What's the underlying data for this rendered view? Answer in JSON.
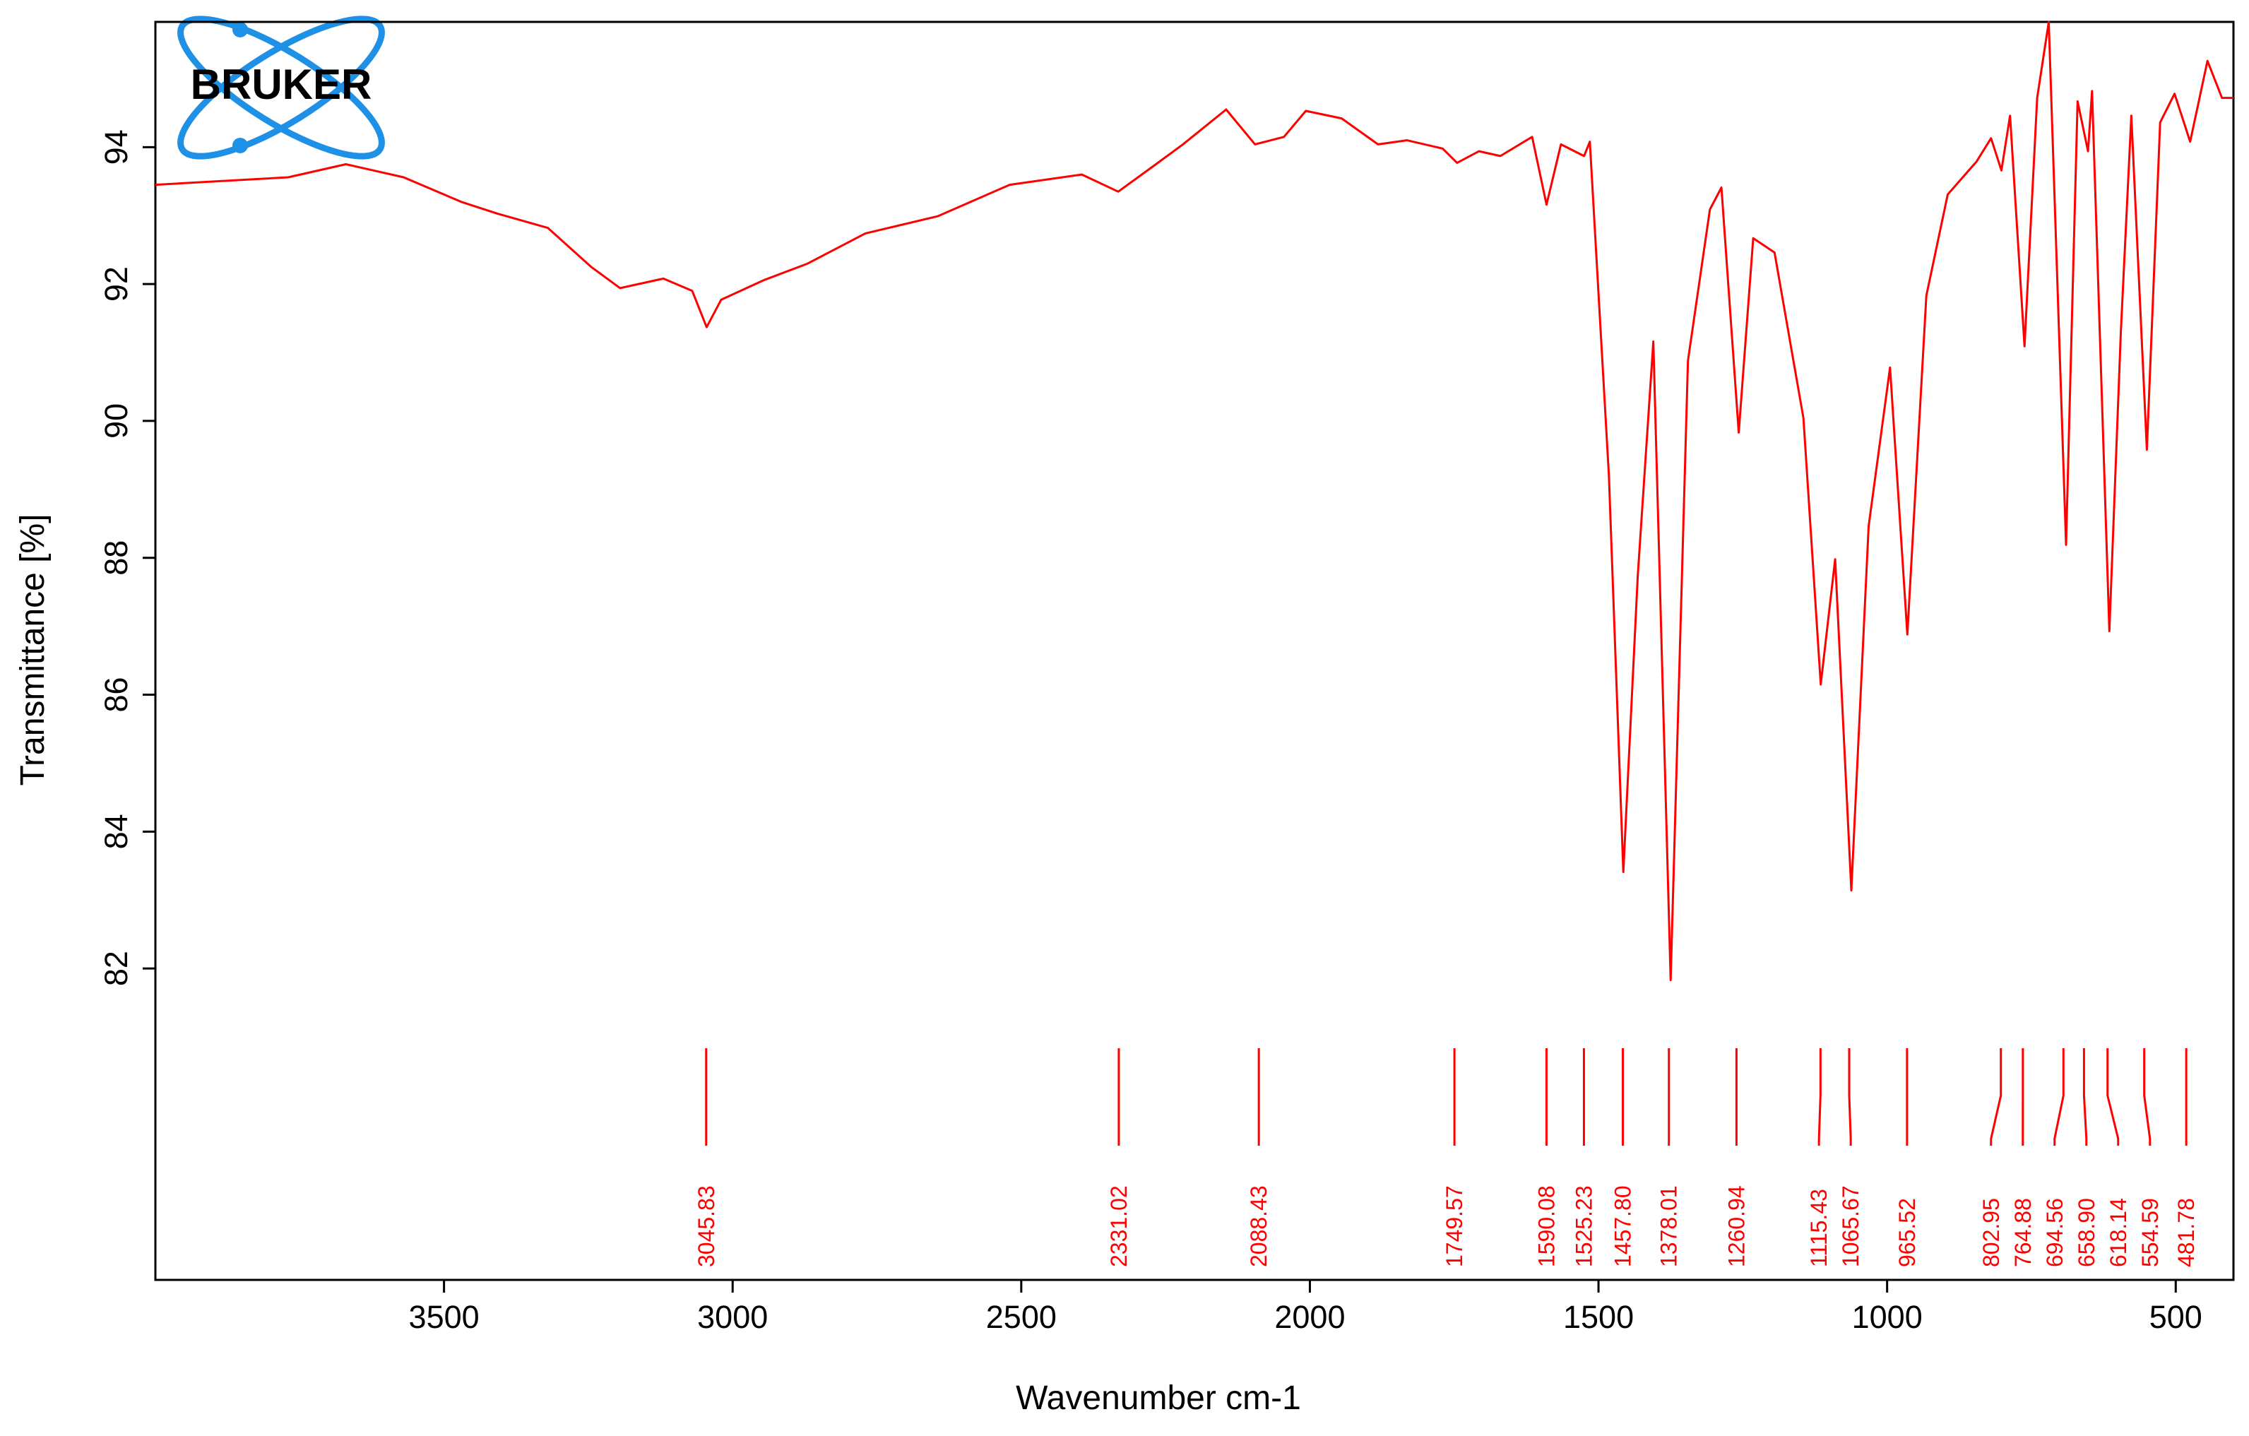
{
  "chart_data": {
    "type": "line",
    "logo": "BRUKER",
    "xlabel": "Wavenumber cm-1",
    "ylabel": "Transmittance [%]",
    "xlim": [
      4000,
      400
    ],
    "ylim": [
      77.45,
      95.83
    ],
    "xticks": [
      3500,
      3000,
      2500,
      2000,
      1500,
      1000,
      500
    ],
    "yticks": [
      82,
      84,
      86,
      88,
      90,
      92,
      94
    ],
    "color": "#ff0000",
    "x": [
      4000,
      3770,
      3670,
      3570,
      3470,
      3408,
      3320,
      3245,
      3195,
      3120,
      3070,
      3045,
      3020,
      2945,
      2870,
      2770,
      2645,
      2520,
      2395,
      2332,
      2270,
      2220,
      2145,
      2095,
      2045,
      2007,
      1945,
      1882,
      1832,
      1770,
      1745,
      1707,
      1670,
      1615,
      1590,
      1565,
      1525,
      1515,
      1482,
      1457,
      1432,
      1405,
      1375,
      1345,
      1307,
      1287,
      1257,
      1232,
      1195,
      1145,
      1115,
      1090,
      1062,
      1032,
      995,
      965,
      932,
      895,
      845,
      820,
      802,
      787,
      762,
      740,
      720,
      690,
      670,
      652,
      645,
      615,
      595,
      577,
      550,
      527,
      502,
      475,
      445,
      420,
      400
    ],
    "values": [
      93.45,
      93.56,
      93.75,
      93.56,
      93.2,
      93.03,
      92.82,
      92.25,
      91.94,
      92.08,
      91.9,
      91.37,
      91.77,
      92.06,
      92.3,
      92.74,
      92.99,
      93.45,
      93.6,
      93.35,
      93.73,
      94.04,
      94.55,
      94.04,
      94.15,
      94.53,
      94.42,
      94.04,
      94.1,
      93.98,
      93.77,
      93.94,
      93.87,
      94.15,
      93.16,
      94.04,
      93.87,
      94.08,
      89.2,
      83.41,
      87.73,
      91.16,
      81.83,
      90.88,
      93.09,
      93.41,
      89.83,
      92.67,
      92.46,
      90.04,
      86.15,
      87.98,
      83.14,
      88.46,
      90.78,
      86.88,
      91.83,
      93.31,
      93.79,
      94.13,
      93.66,
      94.46,
      91.09,
      94.72,
      95.83,
      88.19,
      94.67,
      93.94,
      94.82,
      86.93,
      91.31,
      94.46,
      89.58,
      94.36,
      94.78,
      94.08,
      95.26,
      94.72,
      94.72
    ],
    "peaks": [
      3045.83,
      2331.02,
      2088.43,
      1749.57,
      1590.08,
      1525.23,
      1457.8,
      1378.01,
      1260.94,
      1115.43,
      1065.67,
      965.52,
      802.95,
      764.88,
      694.56,
      658.9,
      618.14,
      554.59,
      481.78
    ],
    "peak_labels": [
      "3045.83",
      "2331.02",
      "2088.43",
      "1749.57",
      "1590.08",
      "1525.23",
      "1457.80",
      "1378.01",
      "1260.94",
      "1115.43",
      "1065.67",
      "965.52",
      "802.95",
      "764.88",
      "694.56",
      "658.90",
      "618.14",
      "554.59",
      "481.78"
    ]
  }
}
